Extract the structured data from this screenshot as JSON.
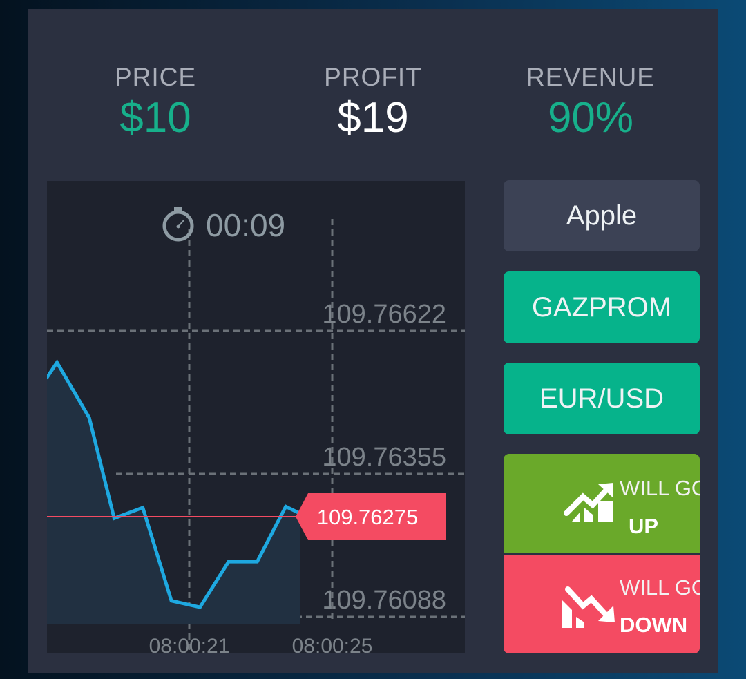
{
  "stats": [
    {
      "label": "PRICE",
      "value": "$10",
      "color": "#17b08b"
    },
    {
      "label": "PROFIT",
      "value": "$19",
      "color": "#ffffff"
    },
    {
      "label": "REVENUE",
      "value": "90%",
      "color": "#17b08b"
    }
  ],
  "timer": {
    "icon": "stopwatch-icon",
    "value": "00:09"
  },
  "assets": [
    {
      "label": "Apple",
      "color": "#3c4255",
      "selected": false
    },
    {
      "label": "GAZPROM",
      "color": "#06b38b",
      "selected": true
    },
    {
      "label": "EUR/USD",
      "color": "#06b38b",
      "selected": true
    }
  ],
  "trade": {
    "up": {
      "line1": "WILL GO",
      "line2": "UP",
      "color": "#6aa92a",
      "icon": "trend-up-icon"
    },
    "down": {
      "line1": "WILL GO",
      "line2": "DOWN",
      "color": "#f44b62",
      "icon": "trend-down-icon"
    }
  },
  "chart_data": {
    "type": "area",
    "y_ticks": [
      "109.76622",
      "109.76355",
      "109.76088"
    ],
    "x_ticks": [
      "08:00:21",
      "08:00:25"
    ],
    "current_price": "109.76275",
    "line_color": "#1ea8e0",
    "current_color": "#f44b62",
    "grid": "dashed",
    "points": [
      [
        "08:00:17.0",
        109.76533
      ],
      [
        "08:00:17.3",
        109.76563
      ],
      [
        "08:00:18.2",
        109.7646
      ],
      [
        "08:00:18.9",
        109.76272
      ],
      [
        "08:00:19.7",
        109.76292
      ],
      [
        "08:00:20.5",
        109.76118
      ],
      [
        "08:00:21.3",
        109.76106
      ],
      [
        "08:00:22.1",
        109.76191
      ],
      [
        "08:00:22.9",
        109.76191
      ],
      [
        "08:00:23.7",
        109.76294
      ],
      [
        "08:00:24.1",
        109.76281
      ]
    ]
  }
}
